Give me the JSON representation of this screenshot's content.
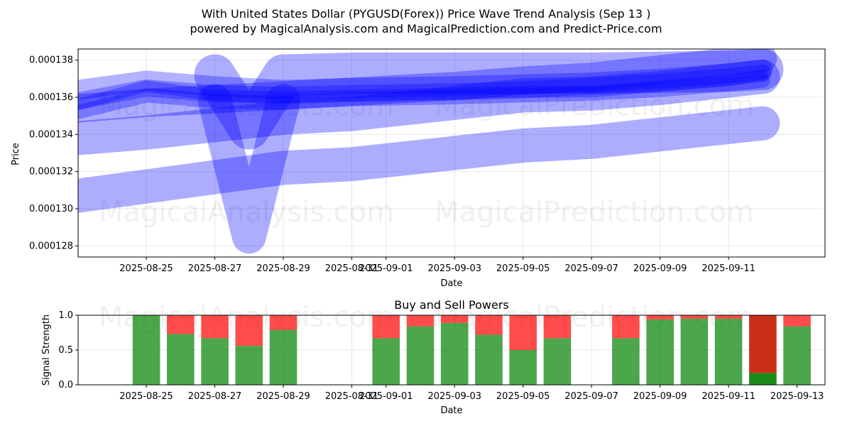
{
  "title_line1": "With United States Dollar (PYGUSD(Forex)) Price Wave Trend Analysis (Sep 13 )",
  "title_line2": "powered by MagicalAnalysis.com and MagicalPrediction.com and Predict-Price.com",
  "watermark": {
    "left": "MagicalAnalysis.com",
    "right": "MagicalPrediction.com"
  },
  "colors": {
    "band": "#0000ff",
    "buy": "#008000",
    "sell": "#ff0000"
  },
  "chart_data": [
    {
      "type": "area",
      "title": "",
      "xlabel": "Date",
      "ylabel": "Price",
      "x_tick_labels": [
        "2025-08-25",
        "2025-08-27",
        "2025-08-29",
        "2025-08-31",
        "2025-09-01",
        "2025-09-03",
        "2025-09-05",
        "2025-09-07",
        "2025-09-09",
        "2025-09-11"
      ],
      "y_tick_labels": [
        "0.000128",
        "0.000130",
        "0.000132",
        "0.000134",
        "0.000136",
        "0.000138"
      ],
      "ylim": [
        0.0001274,
        0.0001386
      ],
      "xlim": [
        "2025-08-23 00:12",
        "2025-09-13 19:36"
      ],
      "grid": true,
      "series": [
        {
          "x": [
            "2025-08-23",
            "2025-08-25",
            "2025-08-27",
            "2025-08-29",
            "2025-08-31",
            "2025-09-03",
            "2025-09-05",
            "2025-09-07",
            "2025-09-09",
            "2025-09-11",
            "2025-09-12"
          ],
          "y": [
            0.0001307,
            0.0001312,
            0.0001317,
            0.0001322,
            0.0001324,
            0.000133,
            0.0001334,
            0.0001336,
            0.000134,
            0.0001344,
            0.0001346
          ]
        },
        {
          "x": [
            "2025-08-23",
            "2025-08-25",
            "2025-08-27",
            "2025-08-29",
            "2025-08-31",
            "2025-09-03",
            "2025-09-05",
            "2025-09-07",
            "2025-09-09",
            "2025-09-11",
            "2025-09-12"
          ],
          "y": [
            0.0001338,
            0.0001341,
            0.0001345,
            0.0001349,
            0.0001351,
            0.0001357,
            0.0001361,
            0.0001362,
            0.0001365,
            0.0001369,
            0.0001371
          ]
        },
        {
          "x": [
            "2025-08-23",
            "2025-08-25",
            "2025-08-27",
            "2025-08-29",
            "2025-08-31",
            "2025-09-03",
            "2025-09-05",
            "2025-09-07",
            "2025-09-09",
            "2025-09-11",
            "2025-09-12"
          ],
          "y": [
            0.0001354,
            0.0001357,
            0.0001359,
            0.0001361,
            0.0001363,
            0.0001366,
            0.0001369,
            0.0001371,
            0.0001375,
            0.0001379,
            0.0001381
          ]
        },
        {
          "x": [
            "2025-08-23",
            "2025-08-25",
            "2025-08-27",
            "2025-08-29",
            "2025-08-31",
            "2025-09-03",
            "2025-09-05",
            "2025-09-07",
            "2025-09-09",
            "2025-09-11",
            "2025-09-12"
          ],
          "y": [
            0.0001364,
            0.0001369,
            0.0001366,
            0.0001364,
            0.0001365,
            0.0001366,
            0.0001367,
            0.0001368,
            0.000137,
            0.0001373,
            0.0001375
          ]
        },
        {
          "x": [
            "2025-08-23",
            "2025-08-25",
            "2025-08-27",
            "2025-08-29",
            "2025-08-31",
            "2025-09-03",
            "2025-09-05",
            "2025-09-07",
            "2025-09-09",
            "2025-09-11",
            "2025-09-12"
          ],
          "y": [
            0.0001358,
            0.0001365,
            0.0001362,
            0.0001361,
            0.0001362,
            0.0001363,
            0.0001364,
            0.0001366,
            0.0001368,
            0.0001371,
            0.0001373
          ]
        },
        {
          "x": [
            "2025-08-23",
            "2025-08-25",
            "2025-08-27",
            "2025-08-29",
            "2025-08-31",
            "2025-09-03",
            "2025-09-05",
            "2025-09-07",
            "2025-09-09",
            "2025-09-11",
            "2025-09-12"
          ],
          "y": [
            0.0001352,
            0.0001361,
            0.0001358,
            0.0001357,
            0.0001359,
            0.000136,
            0.0001361,
            0.0001362,
            0.0001364,
            0.0001367,
            0.0001369
          ]
        },
        {
          "x": [
            "2025-08-23",
            "2025-08-25",
            "2025-08-27",
            "2025-08-29",
            "2025-08-31",
            "2025-09-03",
            "2025-09-05",
            "2025-09-07",
            "2025-09-09",
            "2025-09-11",
            "2025-09-12"
          ],
          "y": [
            0.0001356,
            0.0001366,
            0.0001361,
            0.000136,
            0.0001361,
            0.0001362,
            0.0001363,
            0.0001363,
            0.0001366,
            0.0001369,
            0.0001372
          ]
        },
        {
          "x": [
            "2025-08-27",
            "2025-08-28",
            "2025-08-29",
            "2025-08-31",
            "2025-09-03",
            "2025-09-07",
            "2025-09-11",
            "2025-09-12"
          ],
          "y": [
            0.0001372,
            0.0001343,
            0.0001372,
            0.0001373,
            0.0001373,
            0.0001373,
            0.0001374,
            0.0001375
          ]
        },
        {
          "x": [
            "2025-08-27",
            "2025-08-28",
            "2025-08-29"
          ],
          "y": [
            0.0001358,
            0.0001285,
            0.0001358
          ]
        }
      ]
    },
    {
      "type": "bar",
      "title": "Buy and Sell Powers",
      "xlabel": "Date",
      "ylabel": "Signal Strength",
      "x_tick_labels": [
        "2025-08-25",
        "2025-08-27",
        "2025-08-29",
        "2025-08-31",
        "2025-09-01",
        "2025-09-03",
        "2025-09-05",
        "2025-09-07",
        "2025-09-09",
        "2025-09-11",
        "2025-09-13"
      ],
      "y_tick_labels": [
        "0.0",
        "0.5",
        "1.0"
      ],
      "ylim": [
        0,
        1
      ],
      "grid": true,
      "categories": [
        "2025-08-25",
        "2025-08-26",
        "2025-08-27",
        "2025-08-28",
        "2025-08-29",
        "2025-09-01",
        "2025-09-02",
        "2025-09-03",
        "2025-09-04",
        "2025-09-05",
        "2025-09-06",
        "2025-09-08",
        "2025-09-09",
        "2025-09-10",
        "2025-09-11",
        "2025-09-12",
        "2025-09-13"
      ],
      "series": [
        {
          "name": "buy",
          "values": [
            1.0,
            0.73,
            0.67,
            0.56,
            0.79,
            0.67,
            0.84,
            0.89,
            0.72,
            0.5,
            0.67,
            0.67,
            0.94,
            0.95,
            0.95,
            0.17,
            0.84
          ]
        },
        {
          "name": "sell",
          "values": [
            0.0,
            0.27,
            0.33,
            0.44,
            0.21,
            0.33,
            0.16,
            0.11,
            0.28,
            0.5,
            0.33,
            0.33,
            0.06,
            0.05,
            0.05,
            0.83,
            0.16
          ]
        }
      ]
    }
  ]
}
